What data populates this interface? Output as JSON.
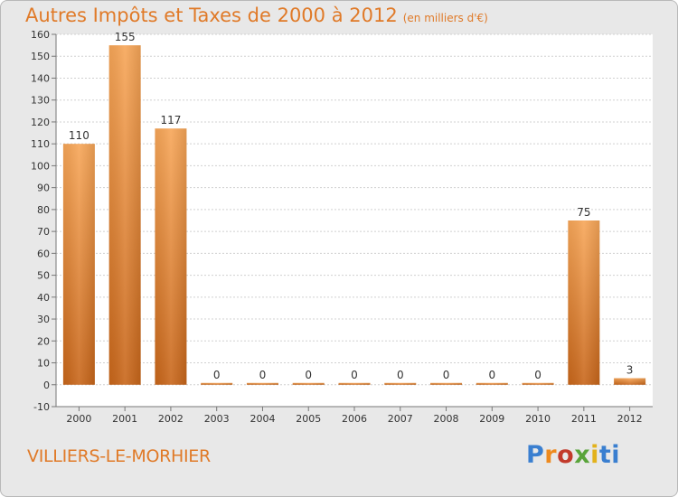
{
  "header": {
    "title": "Autres Impôts et Taxes de 2000 à 2012",
    "unit": "(en milliers d'€)"
  },
  "footer": {
    "commune": "VILLIERS-LE-MORHIER",
    "logo": "Proxiti"
  },
  "colors": {
    "bar_light": "#f7a658",
    "bar_dark": "#c8661a",
    "title": "#e07a28",
    "background": "#e8e8e8"
  },
  "chart_data": {
    "type": "bar",
    "title": "Autres Impôts et Taxes de 2000 à 2012",
    "subtitle": "(en milliers d'€)",
    "categories": [
      "2000",
      "2001",
      "2002",
      "2003",
      "2004",
      "2005",
      "2006",
      "2007",
      "2008",
      "2009",
      "2010",
      "2011",
      "2012"
    ],
    "values": [
      110,
      155,
      117,
      0,
      0,
      0,
      0,
      0,
      0,
      0,
      0,
      75,
      3
    ],
    "ylim": [
      -10,
      160
    ],
    "yticks": [
      -10,
      0,
      10,
      20,
      30,
      40,
      50,
      60,
      70,
      80,
      90,
      100,
      110,
      120,
      130,
      140,
      150,
      160
    ],
    "grid": true,
    "legend": "none"
  }
}
